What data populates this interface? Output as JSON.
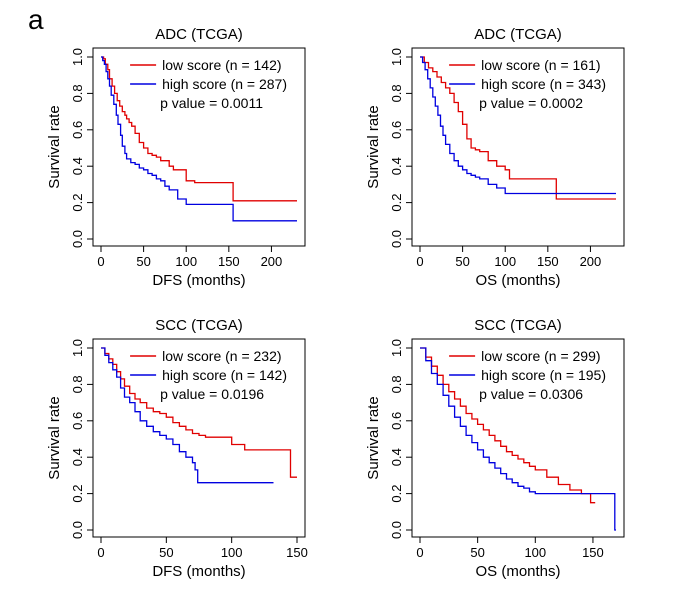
{
  "figure": {
    "panel_label": "a"
  },
  "chart_data": [
    {
      "type": "line",
      "subtype": "kaplan-meier",
      "title": "ADC (TCGA)",
      "xlabel": "DFS (months)",
      "ylabel": "Survival rate",
      "xlim": [
        0,
        230
      ],
      "ylim": [
        0,
        1
      ],
      "xticks": [
        0,
        50,
        100,
        150,
        200
      ],
      "yticks": [
        0.0,
        0.2,
        0.4,
        0.6,
        0.8,
        1.0
      ],
      "ytick_labels": [
        "0.0",
        "0.2",
        "0.4",
        "0.6",
        "0.8",
        "1.0"
      ],
      "legend_position": "top-right",
      "p_value_text": "p value = 0.0011",
      "series": [
        {
          "name": "low score (n = 142)",
          "color": "#e00000",
          "x": [
            0,
            3,
            5,
            8,
            10,
            13,
            16,
            19,
            22,
            25,
            28,
            30,
            33,
            36,
            40,
            45,
            50,
            55,
            60,
            65,
            70,
            80,
            85,
            100,
            110,
            120,
            130,
            150,
            155,
            170,
            200,
            230
          ],
          "y": [
            1.0,
            0.99,
            0.96,
            0.93,
            0.88,
            0.84,
            0.8,
            0.76,
            0.73,
            0.7,
            0.68,
            0.66,
            0.64,
            0.62,
            0.58,
            0.53,
            0.5,
            0.47,
            0.46,
            0.45,
            0.43,
            0.4,
            0.38,
            0.32,
            0.31,
            0.31,
            0.31,
            0.31,
            0.21,
            0.21,
            0.21,
            0.21
          ]
        },
        {
          "name": "high score (n = 287)",
          "color": "#0000e0",
          "x": [
            0,
            2,
            4,
            6,
            8,
            10,
            12,
            15,
            18,
            20,
            23,
            25,
            28,
            30,
            35,
            40,
            45,
            50,
            55,
            60,
            65,
            70,
            75,
            80,
            90,
            100,
            120,
            150,
            155,
            170,
            200,
            230
          ],
          "y": [
            1.0,
            0.98,
            0.96,
            0.92,
            0.88,
            0.84,
            0.79,
            0.74,
            0.68,
            0.63,
            0.57,
            0.51,
            0.47,
            0.44,
            0.42,
            0.41,
            0.39,
            0.38,
            0.36,
            0.35,
            0.33,
            0.32,
            0.29,
            0.27,
            0.22,
            0.19,
            0.19,
            0.19,
            0.1,
            0.1,
            0.1,
            0.1
          ]
        }
      ]
    },
    {
      "type": "line",
      "subtype": "kaplan-meier",
      "title": "ADC (TCGA)",
      "xlabel": "OS (months)",
      "ylabel": "Survival rate",
      "xlim": [
        0,
        230
      ],
      "ylim": [
        0,
        1
      ],
      "xticks": [
        0,
        50,
        100,
        150,
        200
      ],
      "yticks": [
        0.0,
        0.2,
        0.4,
        0.6,
        0.8,
        1.0
      ],
      "ytick_labels": [
        "0.0",
        "0.2",
        "0.4",
        "0.6",
        "0.8",
        "1.0"
      ],
      "legend_position": "top-right",
      "p_value_text": "p value = 0.0002",
      "series": [
        {
          "name": "low score (n = 161)",
          "color": "#e00000",
          "x": [
            0,
            5,
            10,
            15,
            20,
            25,
            30,
            35,
            40,
            45,
            50,
            55,
            60,
            65,
            70,
            75,
            80,
            90,
            100,
            105,
            110,
            130,
            155,
            160,
            200,
            230
          ],
          "y": [
            1.0,
            0.97,
            0.94,
            0.92,
            0.89,
            0.86,
            0.83,
            0.8,
            0.75,
            0.7,
            0.63,
            0.55,
            0.5,
            0.49,
            0.48,
            0.48,
            0.43,
            0.4,
            0.38,
            0.33,
            0.33,
            0.33,
            0.33,
            0.22,
            0.22,
            0.22
          ]
        },
        {
          "name": "high score (n = 343)",
          "color": "#0000e0",
          "x": [
            0,
            3,
            6,
            9,
            12,
            15,
            18,
            21,
            24,
            27,
            30,
            35,
            40,
            45,
            50,
            55,
            60,
            65,
            70,
            80,
            90,
            100,
            150,
            200,
            230
          ],
          "y": [
            1.0,
            0.97,
            0.93,
            0.88,
            0.83,
            0.78,
            0.73,
            0.68,
            0.62,
            0.57,
            0.52,
            0.47,
            0.43,
            0.4,
            0.38,
            0.36,
            0.35,
            0.34,
            0.33,
            0.3,
            0.28,
            0.25,
            0.25,
            0.25,
            0.25
          ]
        }
      ]
    },
    {
      "type": "line",
      "subtype": "kaplan-meier",
      "title": "SCC (TCGA)",
      "xlabel": "DFS (months)",
      "ylabel": "Survival rate",
      "xlim": [
        0,
        150
      ],
      "ylim": [
        0,
        1
      ],
      "xticks": [
        0,
        50,
        100,
        150
      ],
      "yticks": [
        0.0,
        0.2,
        0.4,
        0.6,
        0.8,
        1.0
      ],
      "ytick_labels": [
        "0.0",
        "0.2",
        "0.4",
        "0.6",
        "0.8",
        "1.0"
      ],
      "legend_position": "top-right",
      "p_value_text": "p value = 0.0196",
      "series": [
        {
          "name": "low score (n = 232)",
          "color": "#e00000",
          "x": [
            0,
            3,
            6,
            9,
            12,
            15,
            18,
            22,
            26,
            30,
            35,
            40,
            45,
            50,
            55,
            60,
            65,
            70,
            75,
            80,
            90,
            100,
            110,
            120,
            140,
            145,
            150
          ],
          "y": [
            1.0,
            0.97,
            0.94,
            0.91,
            0.87,
            0.83,
            0.79,
            0.75,
            0.72,
            0.7,
            0.67,
            0.65,
            0.64,
            0.62,
            0.59,
            0.57,
            0.55,
            0.53,
            0.52,
            0.51,
            0.51,
            0.47,
            0.44,
            0.44,
            0.44,
            0.29,
            0.29
          ]
        },
        {
          "name": "high score (n = 142)",
          "color": "#0000e0",
          "x": [
            0,
            3,
            6,
            9,
            12,
            15,
            18,
            22,
            26,
            30,
            35,
            40,
            45,
            50,
            55,
            60,
            65,
            70,
            72,
            74,
            80,
            100,
            120,
            132
          ],
          "y": [
            1.0,
            0.96,
            0.92,
            0.88,
            0.84,
            0.78,
            0.73,
            0.7,
            0.65,
            0.6,
            0.57,
            0.54,
            0.52,
            0.5,
            0.47,
            0.43,
            0.4,
            0.37,
            0.33,
            0.26,
            0.26,
            0.26,
            0.26,
            0.26
          ]
        }
      ]
    },
    {
      "type": "line",
      "subtype": "kaplan-meier",
      "title": "SCC (TCGA)",
      "xlabel": "OS (months)",
      "ylabel": "Survival rate",
      "xlim": [
        0,
        170
      ],
      "ylim": [
        0,
        1
      ],
      "xticks": [
        0,
        50,
        100,
        150
      ],
      "yticks": [
        0.0,
        0.2,
        0.4,
        0.6,
        0.8,
        1.0
      ],
      "ytick_labels": [
        "0.0",
        "0.2",
        "0.4",
        "0.6",
        "0.8",
        "1.0"
      ],
      "legend_position": "top-right",
      "p_value_text": "p value = 0.0306",
      "series": [
        {
          "name": "low score (n = 299)",
          "color": "#e00000",
          "x": [
            0,
            5,
            10,
            15,
            20,
            25,
            30,
            35,
            40,
            45,
            50,
            55,
            60,
            65,
            70,
            75,
            80,
            85,
            90,
            95,
            100,
            110,
            120,
            130,
            140,
            148,
            152
          ],
          "y": [
            1.0,
            0.95,
            0.9,
            0.85,
            0.8,
            0.76,
            0.72,
            0.68,
            0.64,
            0.61,
            0.58,
            0.55,
            0.52,
            0.49,
            0.46,
            0.43,
            0.41,
            0.39,
            0.37,
            0.35,
            0.33,
            0.29,
            0.25,
            0.22,
            0.2,
            0.15,
            0.15
          ]
        },
        {
          "name": "high score (n = 195)",
          "color": "#0000e0",
          "x": [
            0,
            5,
            10,
            15,
            20,
            25,
            30,
            35,
            40,
            45,
            50,
            55,
            60,
            65,
            70,
            75,
            80,
            85,
            90,
            95,
            100,
            120,
            150,
            168,
            169,
            170
          ],
          "y": [
            1.0,
            0.93,
            0.86,
            0.8,
            0.74,
            0.68,
            0.62,
            0.57,
            0.52,
            0.48,
            0.44,
            0.4,
            0.37,
            0.34,
            0.31,
            0.28,
            0.26,
            0.24,
            0.23,
            0.21,
            0.2,
            0.2,
            0.2,
            0.2,
            0.0,
            0.0
          ]
        }
      ]
    }
  ]
}
